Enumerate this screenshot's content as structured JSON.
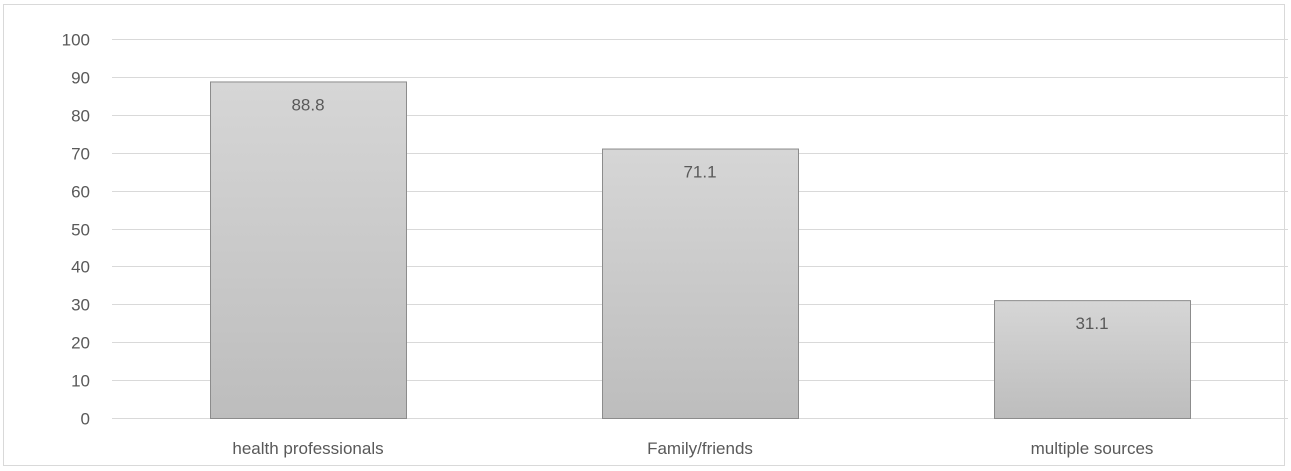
{
  "chart_data": {
    "type": "bar",
    "title": "",
    "xlabel": "",
    "ylabel": "",
    "categories": [
      "health professionals",
      "Family/friends",
      "multiple sources"
    ],
    "values": [
      88.8,
      71.1,
      31.1
    ],
    "data_labels": [
      "88.8",
      "71.1",
      "31.1"
    ],
    "ylim": [
      0,
      100
    ],
    "yticks": [
      0,
      10,
      20,
      30,
      40,
      50,
      60,
      70,
      80,
      90,
      100
    ],
    "grid": true,
    "legend": "none",
    "colors": {
      "bar_top": "#d6d6d6",
      "bar_bottom": "#bdbdbd",
      "bar_border": "#8c8c8c",
      "grid": "#d9d9d9",
      "text": "#595959"
    }
  }
}
